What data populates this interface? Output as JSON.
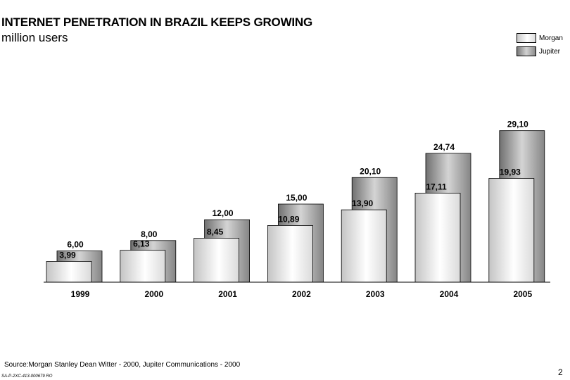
{
  "header": {
    "title": "INTERNET PENETRATION IN BRAZIL KEEPS GROWING",
    "subtitle": "million users"
  },
  "legend": {
    "items": [
      {
        "label": "Morgan"
      },
      {
        "label": "Jupiter"
      }
    ]
  },
  "chart_data": {
    "type": "bar",
    "title": "INTERNET PENETRATION IN BRAZIL KEEPS GROWING",
    "subtitle": "million users",
    "categories": [
      "1999",
      "2000",
      "2001",
      "2002",
      "2003",
      "2004",
      "2005"
    ],
    "series": [
      {
        "name": "Morgan",
        "values": [
          3.99,
          6.13,
          8.45,
          10.89,
          13.9,
          17.11,
          19.93
        ],
        "labels": [
          "3,99",
          "6,13",
          "8,45",
          "10,89",
          "13,90",
          "17,11",
          "19,93"
        ],
        "color": "#f2f2f2"
      },
      {
        "name": "Jupiter",
        "values": [
          6.0,
          8.0,
          12.0,
          15.0,
          20.1,
          24.74,
          29.1
        ],
        "labels": [
          "6,00",
          "8,00",
          "12,00",
          "15,00",
          "20,10",
          "24,74",
          "29,10"
        ],
        "color": "#a8a8a8"
      }
    ],
    "ylim": [
      0,
      30
    ],
    "xlabel": "",
    "ylabel": "",
    "grid": false,
    "legend_position": "top-right"
  },
  "footer": {
    "source": "Source:Morgan Stanley Dean Witter - 2000, Jupiter Communications - 2000",
    "code": "SA-P-2XC-413-000679     RO",
    "page_number": "2"
  }
}
